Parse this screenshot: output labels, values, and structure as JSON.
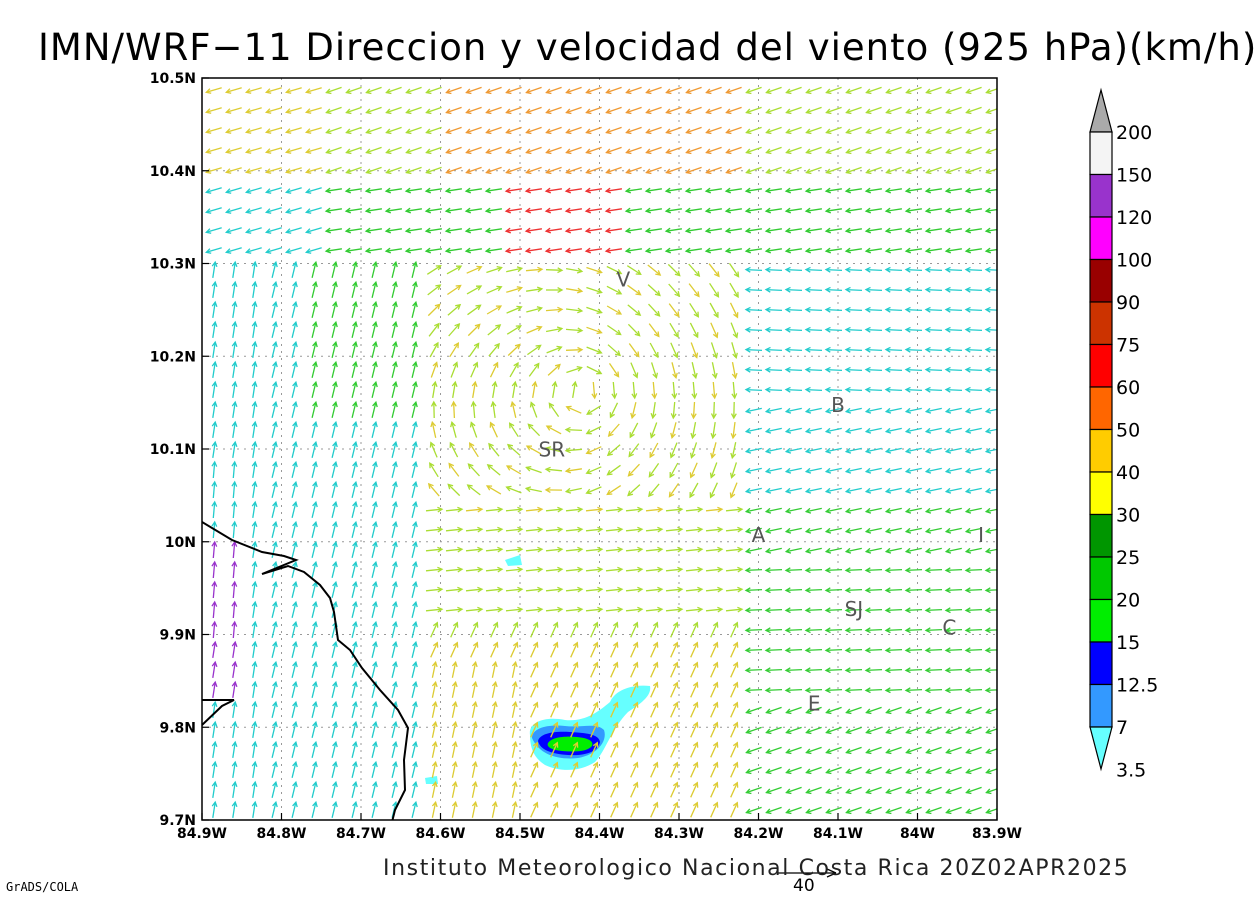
{
  "title": "IMN/WRF−11 Direccion y velocidad del viento (925 hPa)(km/h)",
  "credit": "Instituto Meteorologico Nacional Costa Rica 20Z02APR2025",
  "software": "GrADS/COLA",
  "reference_vector": {
    "value": "40",
    "units": "km/h"
  },
  "map": {
    "projection": "lat-lon",
    "lon_range": [
      -84.9,
      -83.9
    ],
    "lat_range": [
      9.7,
      10.5
    ],
    "x_ticks": [
      "84.9W",
      "84.8W",
      "84.7W",
      "84.6W",
      "84.5W",
      "84.4W",
      "84.3W",
      "84.2W",
      "84.1W",
      "84W",
      "83.9W"
    ],
    "y_ticks": [
      "10.5N",
      "10.4N",
      "10.3N",
      "10.2N",
      "10.1N",
      "10N",
      "9.9N",
      "9.8N",
      "9.7N"
    ],
    "grid": "dotted",
    "city_labels": [
      {
        "text": "V",
        "lon": -84.37,
        "lat": 10.275
      },
      {
        "text": "SR",
        "lon": -84.46,
        "lat": 10.092
      },
      {
        "text": "B",
        "lon": -84.1,
        "lat": 10.14
      },
      {
        "text": "A",
        "lon": -84.2,
        "lat": 10.0
      },
      {
        "text": "I",
        "lon": -83.92,
        "lat": 10.0
      },
      {
        "text": "SJ",
        "lon": -84.08,
        "lat": 9.92
      },
      {
        "text": "C",
        "lon": -83.96,
        "lat": 9.9
      },
      {
        "text": "E",
        "lon": -84.13,
        "lat": 9.818
      }
    ]
  },
  "colorbar": {
    "levels": [
      "3.5",
      "7",
      "12.5",
      "15",
      "20",
      "25",
      "30",
      "40",
      "50",
      "60",
      "75",
      "90",
      "100",
      "120",
      "150",
      "200"
    ],
    "colors": [
      "#66ffff",
      "#3399ff",
      "#0000ff",
      "#00ee00",
      "#00c800",
      "#009600",
      "#ffff00",
      "#ffcc00",
      "#ff6600",
      "#ff0000",
      "#cc3300",
      "#990000",
      "#ff00ff",
      "#9933cc",
      "#f4f4f4",
      "#aaaaaa"
    ]
  },
  "wind_colors": {
    "calm": "#9933cc",
    "light": "#2299ff",
    "moderate": "#22cccc",
    "fresh": "#33cc33",
    "strong": "#aadd33",
    "very_strong": "#ddcc33",
    "gale": "#ee9933",
    "storm": "#ee3333"
  }
}
